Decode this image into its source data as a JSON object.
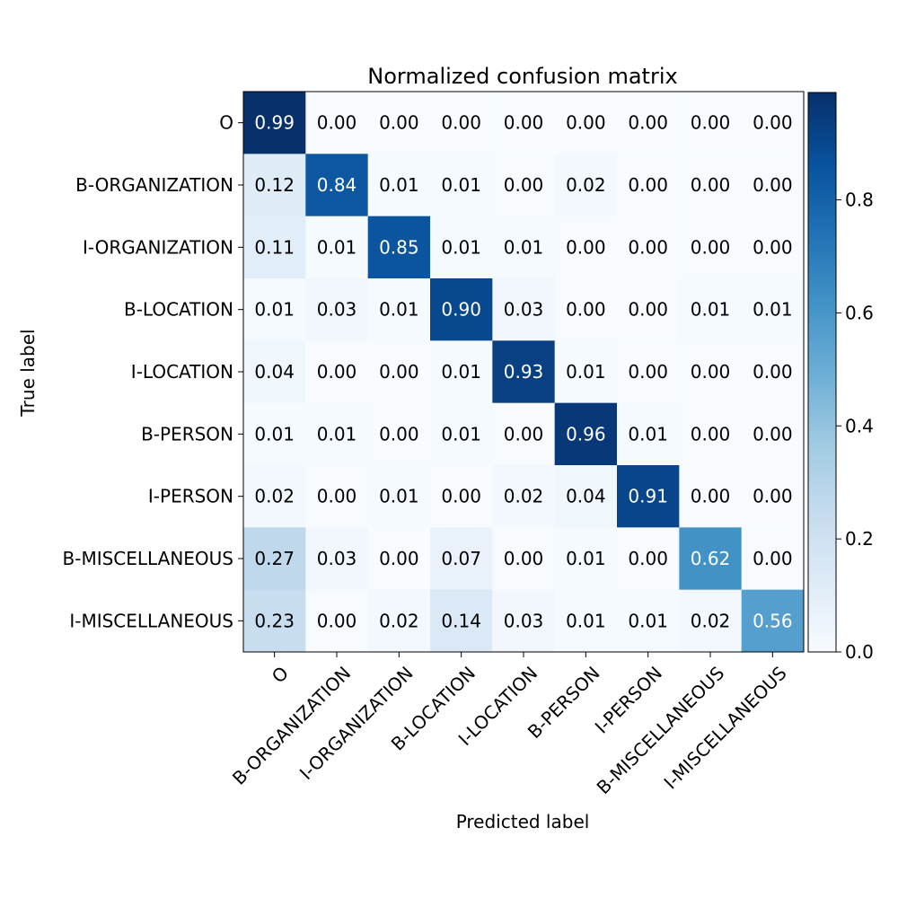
{
  "chart_data": {
    "type": "heatmap",
    "title": "Normalized confusion matrix",
    "xlabel": "Predicted label",
    "ylabel": "True label",
    "labels": [
      "O",
      "B-ORGANIZATION",
      "I-ORGANIZATION",
      "B-LOCATION",
      "I-LOCATION",
      "B-PERSON",
      "I-PERSON",
      "B-MISCELLANEOUS",
      "I-MISCELLANEOUS"
    ],
    "matrix": [
      [
        0.99,
        0.0,
        0.0,
        0.0,
        0.0,
        0.0,
        0.0,
        0.0,
        0.0
      ],
      [
        0.12,
        0.84,
        0.01,
        0.01,
        0.0,
        0.02,
        0.0,
        0.0,
        0.0
      ],
      [
        0.11,
        0.01,
        0.85,
        0.01,
        0.01,
        0.0,
        0.0,
        0.0,
        0.0
      ],
      [
        0.01,
        0.03,
        0.01,
        0.9,
        0.03,
        0.0,
        0.0,
        0.01,
        0.01
      ],
      [
        0.04,
        0.0,
        0.0,
        0.01,
        0.93,
        0.01,
        0.0,
        0.0,
        0.0
      ],
      [
        0.01,
        0.01,
        0.0,
        0.01,
        0.0,
        0.96,
        0.01,
        0.0,
        0.0
      ],
      [
        0.02,
        0.0,
        0.01,
        0.0,
        0.02,
        0.04,
        0.91,
        0.0,
        0.0
      ],
      [
        0.27,
        0.03,
        0.0,
        0.07,
        0.0,
        0.01,
        0.0,
        0.62,
        0.0
      ],
      [
        0.23,
        0.0,
        0.02,
        0.14,
        0.03,
        0.01,
        0.01,
        0.02,
        0.56
      ]
    ],
    "colorbar": {
      "ticks": [
        "0.0",
        "0.2",
        "0.4",
        "0.6",
        "0.8"
      ],
      "range": [
        0,
        0.99
      ]
    },
    "colormap": "Blues"
  }
}
